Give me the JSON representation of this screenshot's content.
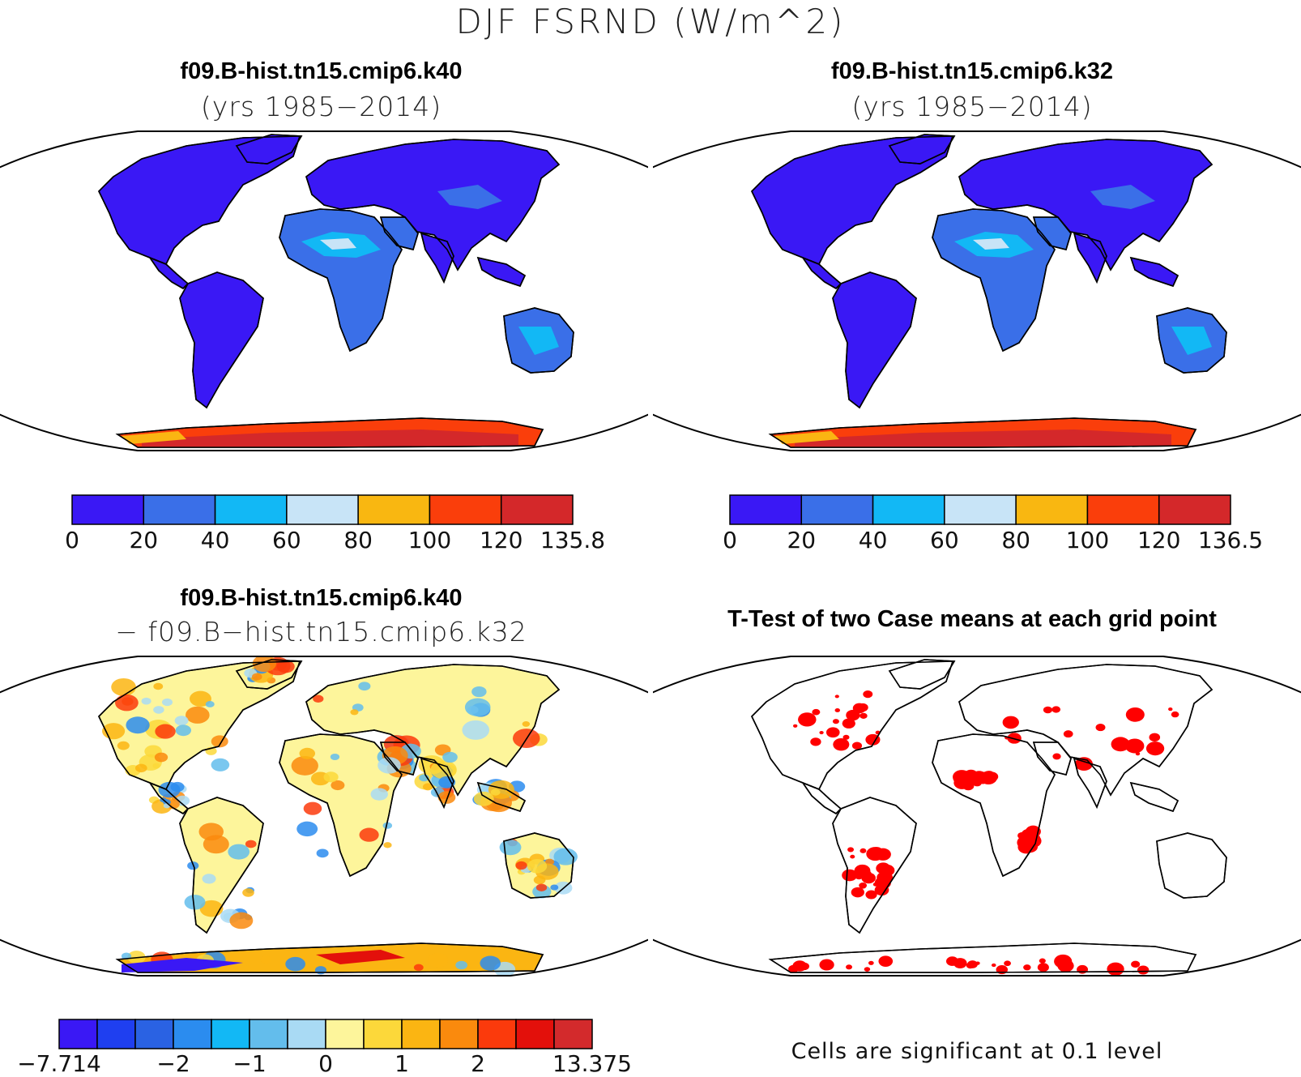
{
  "main_title": "DJF FSRND (W/m^2)",
  "panels": {
    "top_left": {
      "title": "f09.B-hist.tn15.cmip6.k40",
      "subtitle": "(yrs 1985−2014)",
      "colorbar": {
        "ticks": [
          "0",
          "20",
          "40",
          "60",
          "80",
          "100",
          "120",
          "135.8"
        ],
        "colors": [
          "#3a18f5",
          "#3a6fe8",
          "#12b8f5",
          "#c8e4f7",
          "#f9b711",
          "#fa3e0b",
          "#d4282a"
        ]
      }
    },
    "top_right": {
      "title": "f09.B-hist.tn15.cmip6.k32",
      "subtitle": "(yrs 1985−2014)",
      "colorbar": {
        "ticks": [
          "0",
          "20",
          "40",
          "60",
          "80",
          "100",
          "120",
          "136.5"
        ],
        "colors": [
          "#3a18f5",
          "#3a6fe8",
          "#12b8f5",
          "#c8e4f7",
          "#f9b711",
          "#fa3e0b",
          "#d4282a"
        ]
      }
    },
    "bottom_left": {
      "title": "f09.B-hist.tn15.cmip6.k40",
      "subtitle": "− f09.B−hist.tn15.cmip6.k32",
      "colorbar": {
        "ticks": [
          "−7.714",
          "−2",
          "−1",
          "0",
          "1",
          "2",
          "13.375"
        ],
        "colors": [
          "#3a18f5",
          "#1f3ff0",
          "#2a62e3",
          "#2b8cef",
          "#12b8f5",
          "#63bdec",
          "#a9daf4",
          "#fdf59b",
          "#fcd83a",
          "#fbb512",
          "#fa8a0d",
          "#fb3a0c",
          "#e3100b",
          "#d32a2c"
        ]
      }
    },
    "bottom_right": {
      "title": "T-Test of two Case means at each grid point",
      "footnote": "Cells are significant at 0.1 level",
      "significant_color": "#ff0000"
    }
  }
}
